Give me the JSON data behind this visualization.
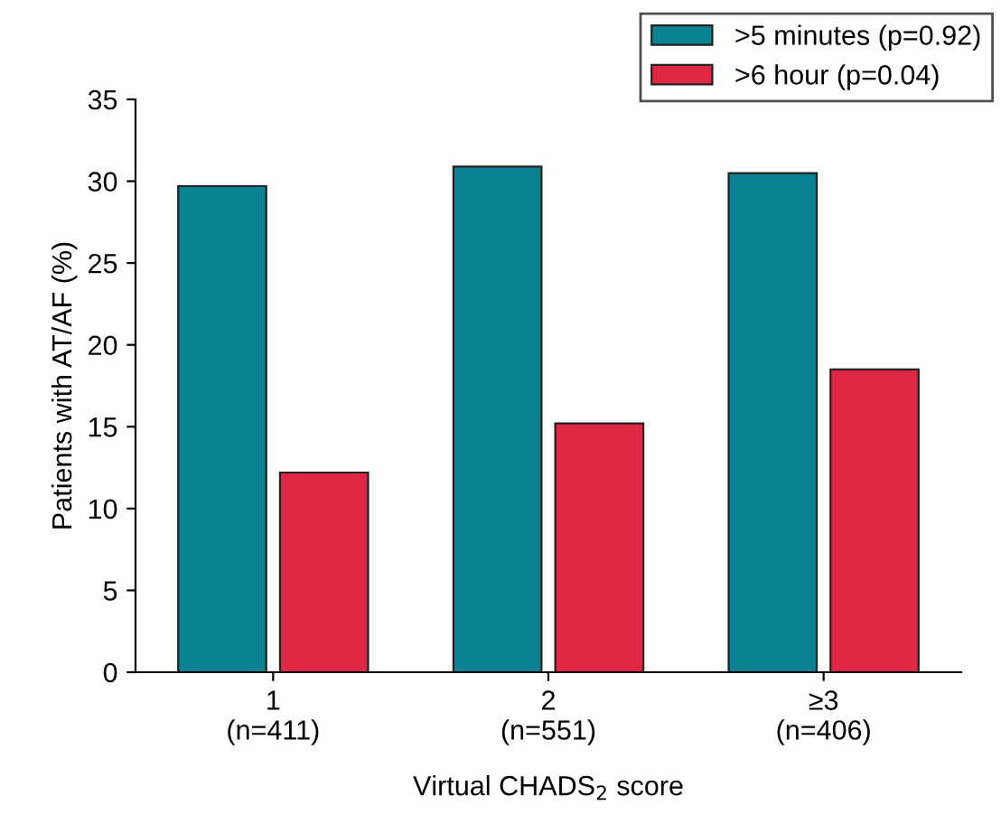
{
  "chart_data": {
    "type": "bar",
    "categories": [
      "1\n(n=411)",
      "2\n(n=551)",
      "≥3\n(n=406)"
    ],
    "series": [
      {
        "name": ">5 minutes (p=0.92)",
        "color": "#0b8291",
        "values": [
          29.7,
          30.9,
          30.5
        ]
      },
      {
        "name": ">6 hour (p=0.04)",
        "color": "#e02845",
        "values": [
          12.2,
          15.2,
          18.5
        ]
      }
    ],
    "xlabel": "Virtual CHADS$_{2}$ score",
    "ylabel": "Patients with AT/AF (%)",
    "ylim": [
      0,
      35
    ],
    "yticks": [
      0,
      5,
      10,
      15,
      20,
      25,
      30,
      35
    ],
    "grid": false,
    "legend": "top right"
  }
}
